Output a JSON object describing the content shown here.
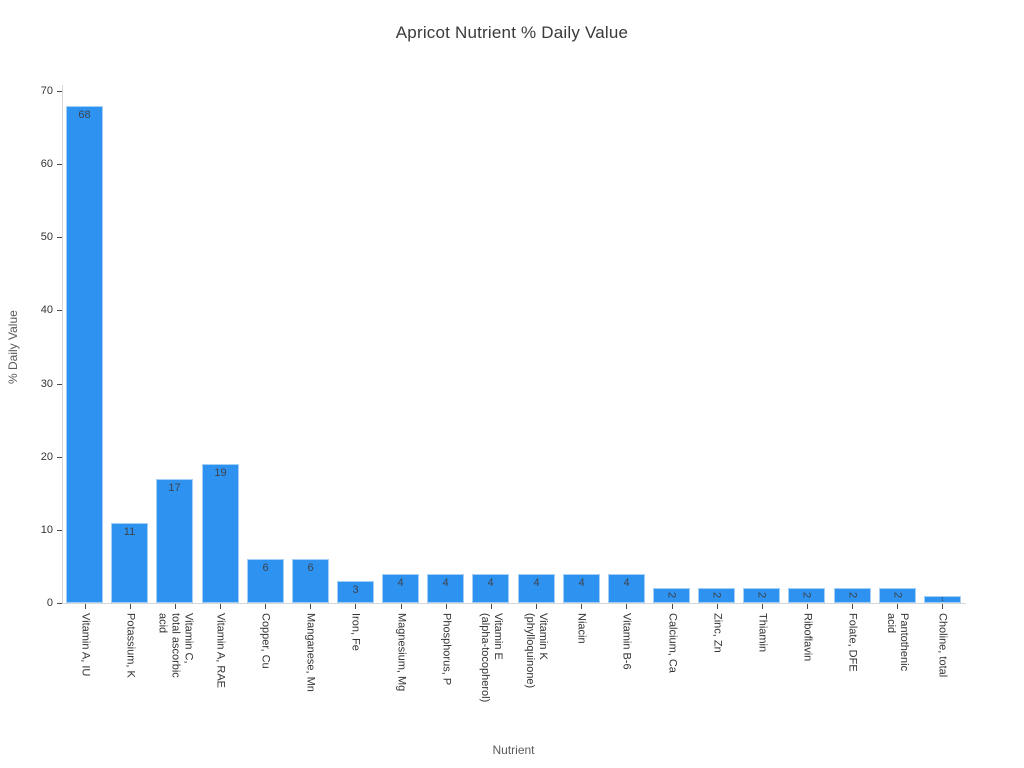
{
  "title": "Apricot Nutrient % Daily Value",
  "chart_data": {
    "type": "bar",
    "title": "Apricot Nutrient % Daily Value",
    "xlabel": "Nutrient",
    "ylabel": "% Daily Value",
    "ylim": [
      0,
      70
    ],
    "yticks": [
      0,
      10,
      20,
      30,
      40,
      50,
      60,
      70
    ],
    "grid": false,
    "legend": null,
    "bar_color": "#2d92f0",
    "bar_edge_color": "#a3cff7",
    "value_label_color": "#3e434c",
    "categories": [
      "Vitamin A, IU",
      "Potassium, K",
      "Vitamin C, total ascorbic acid",
      "Vitamin A, RAE",
      "Copper, Cu",
      "Manganese, Mn",
      "Iron, Fe",
      "Magnesium, Mg",
      "Phosphorus, P",
      "Vitamin E (alpha-tocopherol)",
      "Vitamin K (phylloquinone)",
      "Niacin",
      "Vitamin B-6",
      "Calcium, Ca",
      "Zinc, Zn",
      "Thiamin",
      "Riboflavin",
      "Folate, DFE",
      "Pantothenic acid",
      "Choline, total"
    ],
    "tick_labels_wrapped": [
      "Vitamin A, IU",
      "Potassium, K",
      "Vitamin C,\ntotal ascorbic\nacid",
      "Vitamin A, RAE",
      "Copper, Cu",
      "Manganese, Mn",
      "Iron, Fe",
      "Magnesium, Mg",
      "Phosphorus, P",
      "Vitamin E\n(alpha-tocopherol)",
      "Vitamin K\n(phylloquinone)",
      "Niacin",
      "Vitamin B-6",
      "Calcium, Ca",
      "Zinc, Zn",
      "Thiamin",
      "Riboflavin",
      "Folate, DFE",
      "Pantothenic\nacid",
      "Choline, total"
    ],
    "values": [
      68,
      11,
      17,
      19,
      6,
      6,
      3,
      4,
      4,
      4,
      4,
      4,
      4,
      2,
      2,
      2,
      2,
      2,
      2,
      1
    ]
  }
}
